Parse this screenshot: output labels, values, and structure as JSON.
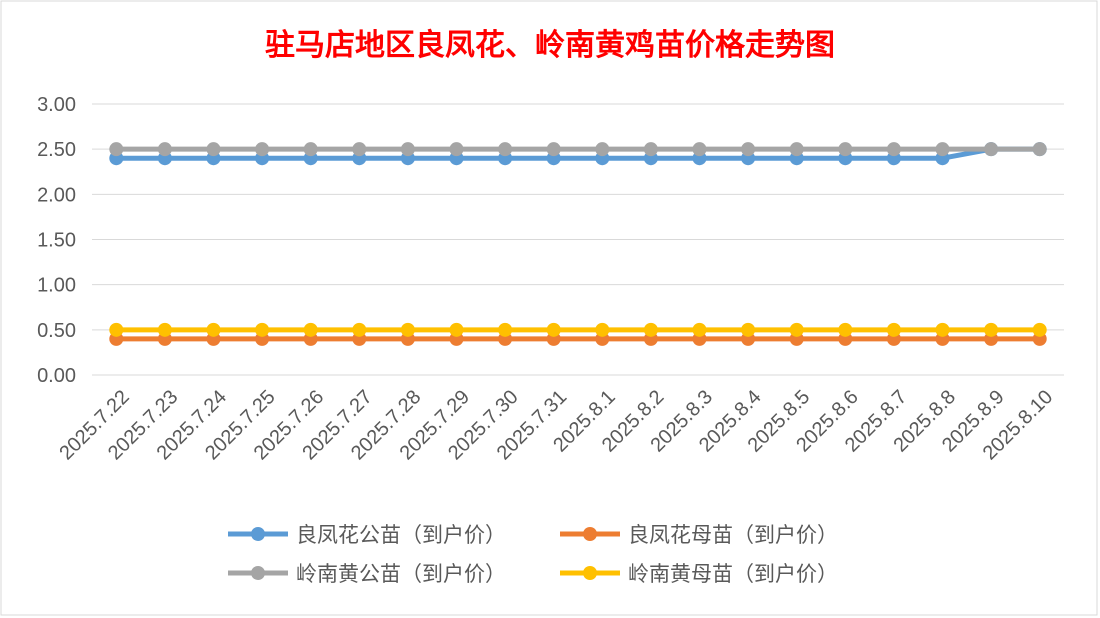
{
  "chart_data": {
    "type": "line",
    "title": "驻马店地区良凤花、岭南黄鸡苗价格走势图",
    "xlabel": "",
    "ylabel": "",
    "categories": [
      "2025.7.22",
      "2025.7.23",
      "2025.7.24",
      "2025.7.25",
      "2025.7.26",
      "2025.7.27",
      "2025.7.28",
      "2025.7.29",
      "2025.7.30",
      "2025.7.31",
      "2025.8.1",
      "2025.8.2",
      "2025.8.3",
      "2025.8.4",
      "2025.8.5",
      "2025.8.6",
      "2025.8.7",
      "2025.8.8",
      "2025.8.9",
      "2025.8.10"
    ],
    "ylim": [
      0,
      3
    ],
    "yticks": [
      "0.00",
      "0.50",
      "1.00",
      "1.50",
      "2.00",
      "2.50",
      "3.00"
    ],
    "grid": true,
    "legend_position": "bottom",
    "series": [
      {
        "name": "良凤花公苗（到户价）",
        "color": "#5b9bd5",
        "values": [
          2.4,
          2.4,
          2.4,
          2.4,
          2.4,
          2.4,
          2.4,
          2.4,
          2.4,
          2.4,
          2.4,
          2.4,
          2.4,
          2.4,
          2.4,
          2.4,
          2.4,
          2.4,
          2.5,
          2.5
        ]
      },
      {
        "name": "良凤花母苗（到户价）",
        "color": "#ed7d31",
        "values": [
          0.4,
          0.4,
          0.4,
          0.4,
          0.4,
          0.4,
          0.4,
          0.4,
          0.4,
          0.4,
          0.4,
          0.4,
          0.4,
          0.4,
          0.4,
          0.4,
          0.4,
          0.4,
          0.4,
          0.4
        ]
      },
      {
        "name": "岭南黄公苗（到户价）",
        "color": "#a5a5a5",
        "values": [
          2.5,
          2.5,
          2.5,
          2.5,
          2.5,
          2.5,
          2.5,
          2.5,
          2.5,
          2.5,
          2.5,
          2.5,
          2.5,
          2.5,
          2.5,
          2.5,
          2.5,
          2.5,
          2.5,
          2.5
        ]
      },
      {
        "name": "岭南黄母苗（到户价）",
        "color": "#ffc000",
        "values": [
          0.5,
          0.5,
          0.5,
          0.5,
          0.5,
          0.5,
          0.5,
          0.5,
          0.5,
          0.5,
          0.5,
          0.5,
          0.5,
          0.5,
          0.5,
          0.5,
          0.5,
          0.5,
          0.5,
          0.5
        ]
      }
    ],
    "title_color": "#ff0000"
  }
}
